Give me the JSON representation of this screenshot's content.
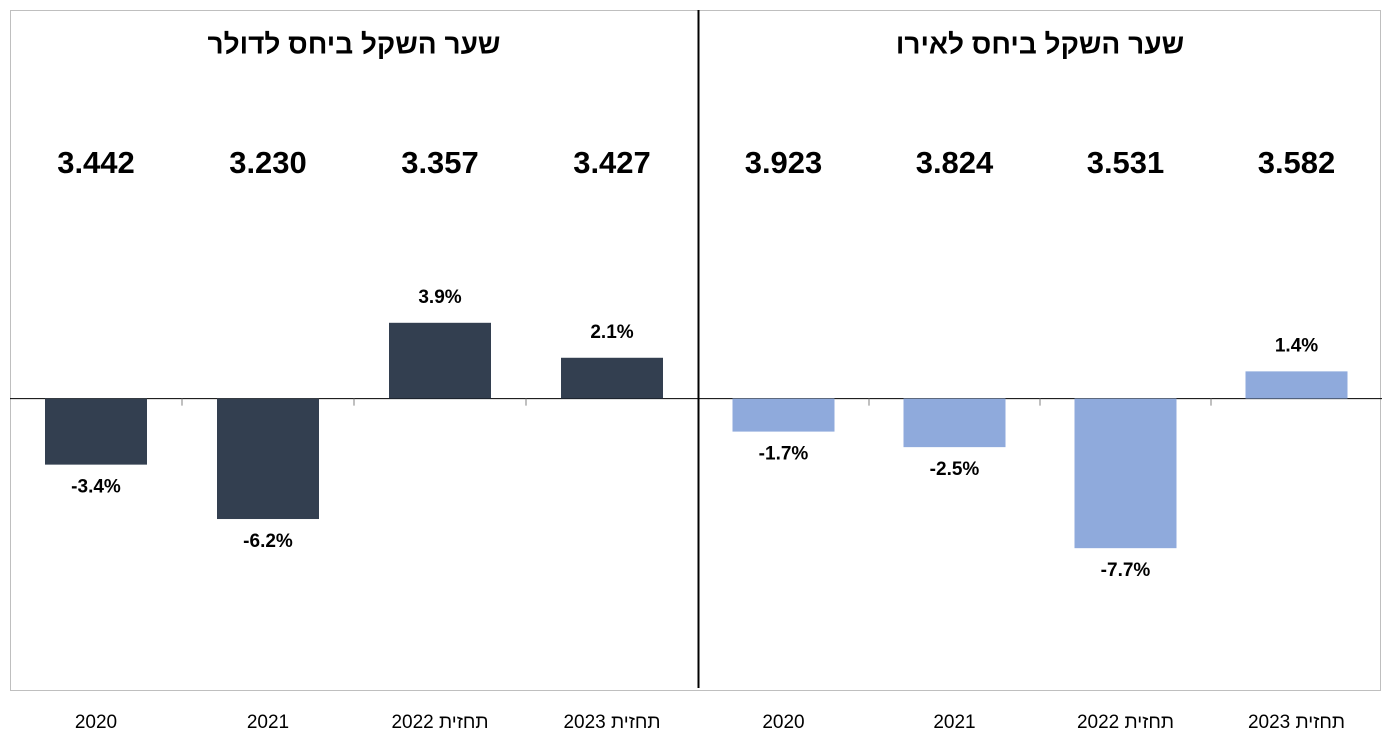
{
  "chart_data": [
    {
      "type": "bar",
      "title": "שער השקל ביחס לדולר",
      "categories": [
        "2020",
        "2021",
        "תחזית 2022",
        "תחזית 2023"
      ],
      "values": [
        -3.4,
        -6.2,
        3.9,
        2.1
      ],
      "value_labels": [
        "-3.4%",
        "-6.2%",
        "3.9%",
        "2.1%"
      ],
      "annotations": [
        "3.442",
        "3.230",
        "3.357",
        "3.427"
      ],
      "color": "#333f50",
      "ylim": [
        -15,
        20
      ]
    },
    {
      "type": "bar",
      "title": "שער השקל ביחס לאירו",
      "categories": [
        "2020",
        "2021",
        "תחזית 2022",
        "תחזית 2023"
      ],
      "values": [
        -1.7,
        -2.5,
        -7.7,
        1.4
      ],
      "value_labels": [
        "-1.7%",
        "-2.5%",
        "-7.7%",
        "1.4%"
      ],
      "annotations": [
        "3.923",
        "3.824",
        "3.531",
        "3.582"
      ],
      "color": "#8faadc",
      "ylim": [
        -15,
        20
      ]
    }
  ]
}
